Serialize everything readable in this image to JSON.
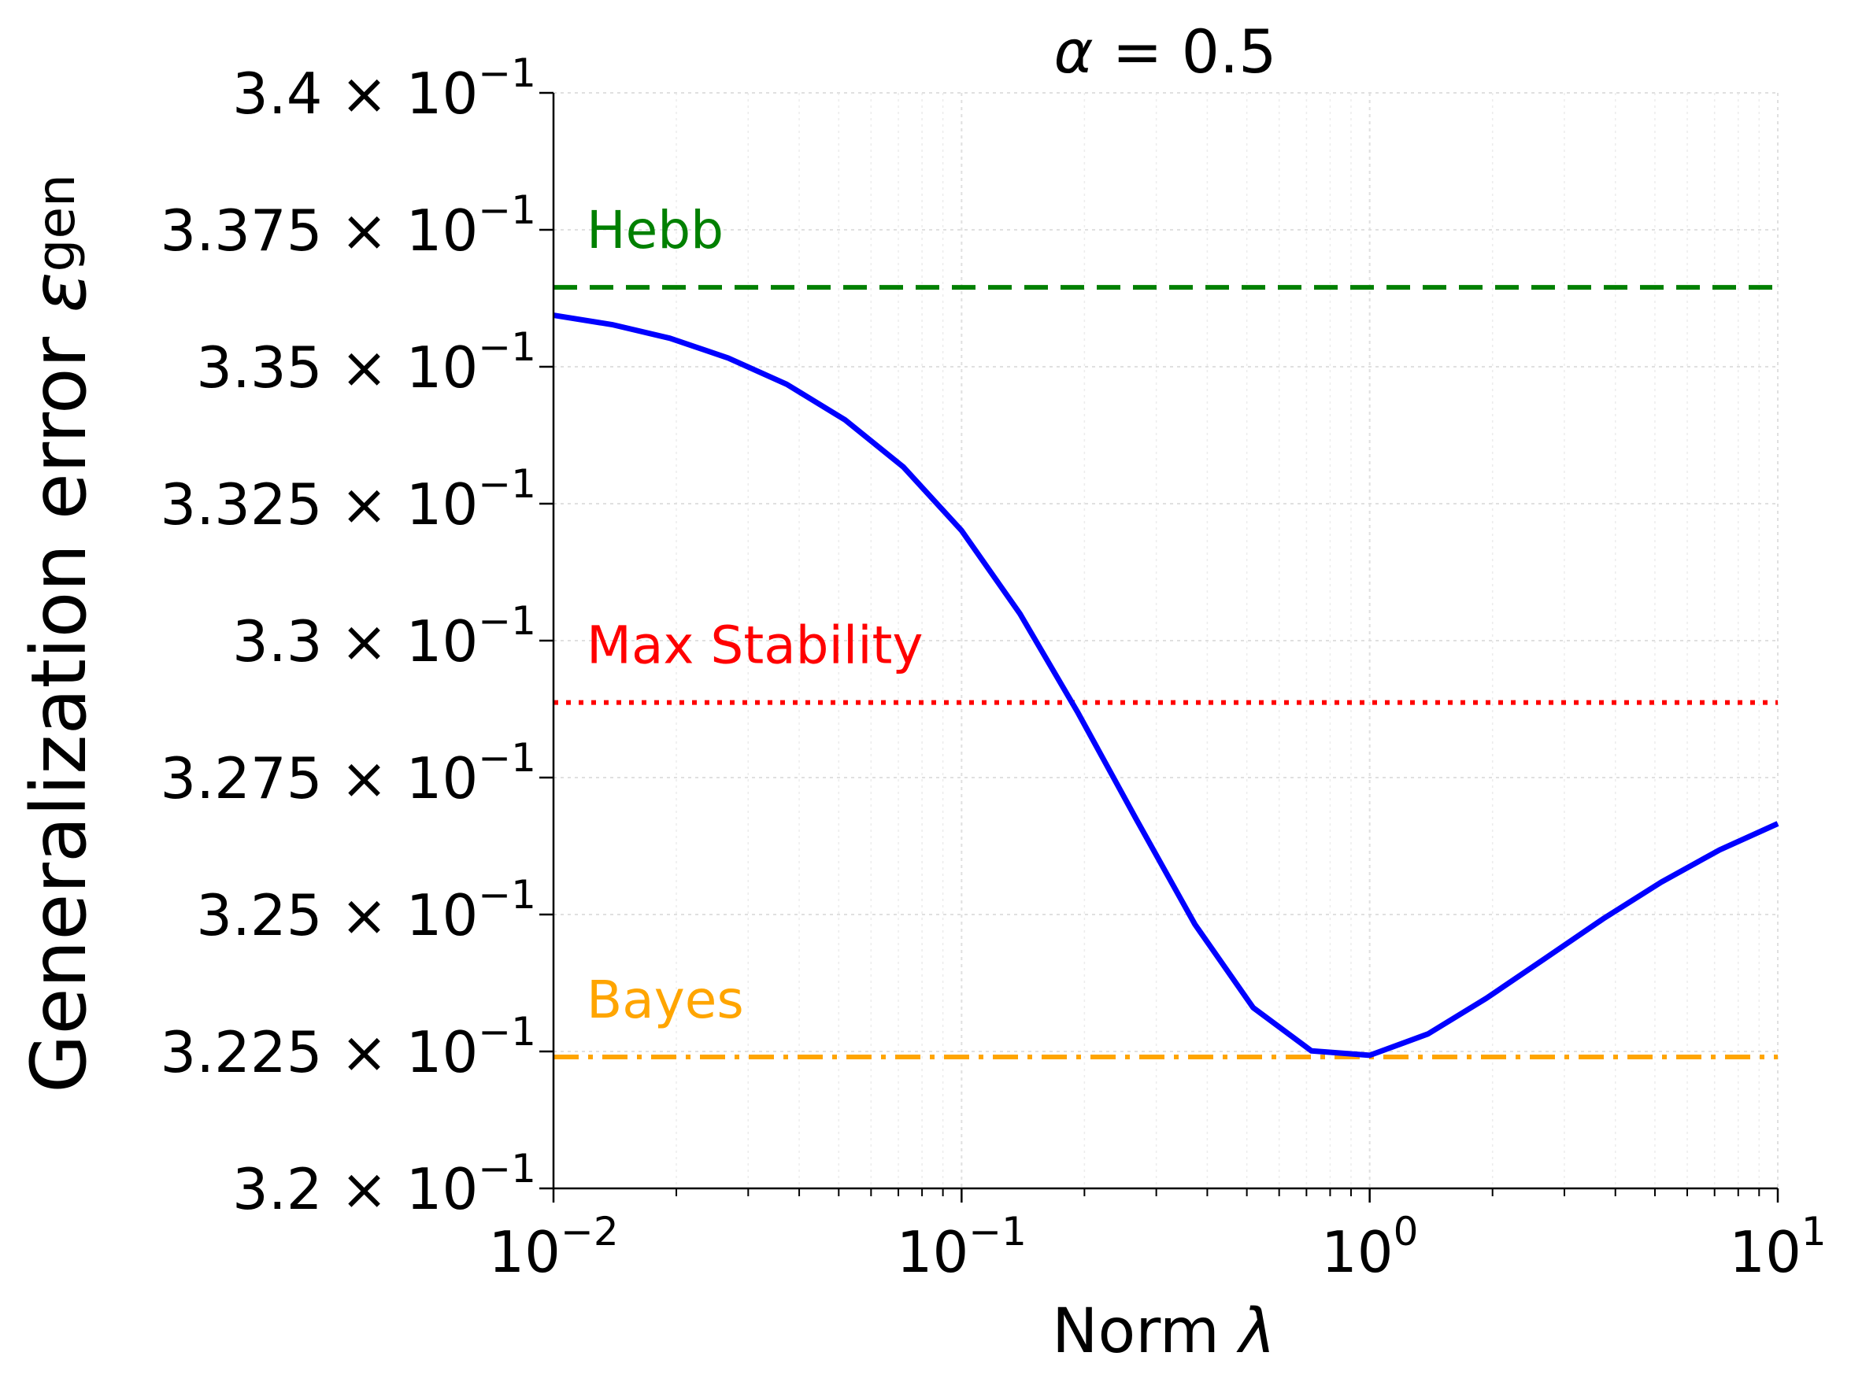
{
  "chart_data": {
    "type": "line",
    "title": "α = 0.5",
    "title_parts": {
      "symbol": "α",
      "relation": " = 0.5"
    },
    "xlabel": "Norm λ",
    "xlabel_parts": {
      "text": "Norm ",
      "symbol": "λ"
    },
    "ylabel": "Generalization error ε_gen",
    "ylabel_parts": {
      "text": "Generalization error ",
      "symbol": "ε",
      "subscript": "gen"
    },
    "xscale": "log",
    "xlim": [
      0.01,
      10
    ],
    "ylim": [
      0.32,
      0.34
    ],
    "grid": true,
    "x_ticks": [
      {
        "value": 0.01,
        "base": "10",
        "exp": "−2"
      },
      {
        "value": 0.1,
        "base": "10",
        "exp": "−1"
      },
      {
        "value": 1,
        "base": "10",
        "exp": "0"
      },
      {
        "value": 10,
        "base": "10",
        "exp": "1"
      }
    ],
    "y_ticks": [
      {
        "value": 0.32,
        "mantissa": "3.2",
        "times": "×",
        "base": "10",
        "exp": "−1"
      },
      {
        "value": 0.3225,
        "mantissa": "3.225",
        "times": "×",
        "base": "10",
        "exp": "−1"
      },
      {
        "value": 0.325,
        "mantissa": "3.25",
        "times": "×",
        "base": "10",
        "exp": "−1"
      },
      {
        "value": 0.3275,
        "mantissa": "3.275",
        "times": "×",
        "base": "10",
        "exp": "−1"
      },
      {
        "value": 0.33,
        "mantissa": "3.3",
        "times": "×",
        "base": "10",
        "exp": "−1"
      },
      {
        "value": 0.3325,
        "mantissa": "3.325",
        "times": "×",
        "base": "10",
        "exp": "−1"
      },
      {
        "value": 0.335,
        "mantissa": "3.35",
        "times": "×",
        "base": "10",
        "exp": "−1"
      },
      {
        "value": 0.3375,
        "mantissa": "3.375",
        "times": "×",
        "base": "10",
        "exp": "−1"
      },
      {
        "value": 0.34,
        "mantissa": "3.4",
        "times": "×",
        "base": "10",
        "exp": "−1"
      }
    ],
    "series": [
      {
        "name": "generalization error",
        "color": "#0000ff",
        "x": [
          0.01,
          0.0139,
          0.0193,
          0.0268,
          0.0373,
          0.0518,
          0.072,
          0.1,
          0.139,
          0.193,
          0.268,
          0.373,
          0.518,
          0.72,
          1.0,
          1.39,
          1.93,
          2.68,
          3.73,
          5.18,
          7.2,
          10.0
        ],
        "y": [
          0.33594,
          0.33577,
          0.33552,
          0.33516,
          0.33468,
          0.33403,
          0.33317,
          0.33201,
          0.33049,
          0.32868,
          0.32674,
          0.32482,
          0.3233,
          0.32251,
          0.32243,
          0.32282,
          0.32347,
          0.32419,
          0.32492,
          0.32559,
          0.32618,
          0.32666
        ]
      }
    ],
    "reference_lines": [
      {
        "name": "Hebb",
        "label": "Hebb",
        "y": 0.33645,
        "color": "#008000",
        "style": "dashed"
      },
      {
        "name": "Max Stability",
        "label": "Max Stability",
        "y": 0.32887,
        "color": "#ff0000",
        "style": "dotted"
      },
      {
        "name": "Bayes",
        "label": "Bayes",
        "y": 0.3224,
        "color": "#ffa500",
        "style": "dashdot"
      }
    ],
    "legend": "inline labels"
  }
}
